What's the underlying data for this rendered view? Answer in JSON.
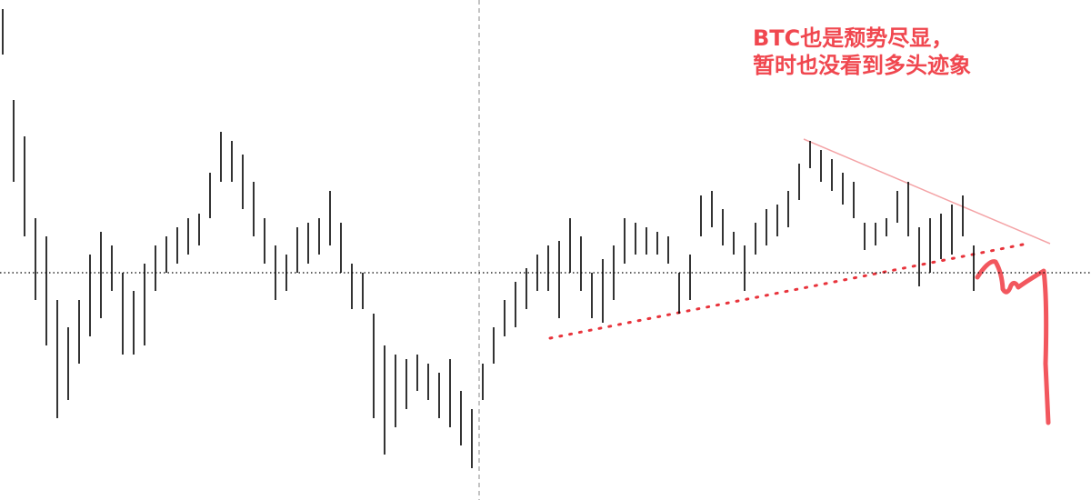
{
  "chart_data": {
    "type": "ohlc",
    "annotations": [
      "BTC也是颓势尽显，",
      "暂时也没看到多头迹象"
    ],
    "color": "#000000",
    "annotation_color": "#f0474f",
    "ylim": [
      0,
      550
    ],
    "price_line": 250,
    "high": [
      540,
      440,
      400,
      310,
      290,
      220,
      190,
      220,
      270,
      295,
      280,
      250,
      230,
      260,
      280,
      290,
      300,
      310,
      315,
      360,
      405,
      395,
      380,
      350,
      310,
      280,
      270,
      300,
      305,
      310,
      340,
      305,
      260,
      250,
      205,
      170,
      160,
      155,
      160,
      150,
      140,
      155,
      120,
      100,
      150,
      190,
      220,
      240,
      255,
      270,
      280,
      285,
      310,
      290,
      250,
      265,
      280,
      310,
      305,
      300,
      295,
      290,
      250,
      270,
      335,
      340,
      320,
      295,
      280,
      305,
      320,
      325,
      340,
      370,
      395,
      385,
      375,
      360,
      350,
      305,
      305,
      310,
      340,
      350,
      300,
      310,
      315,
      325,
      335,
      280
    ],
    "low": [
      490,
      350,
      290,
      220,
      170,
      90,
      110,
      150,
      180,
      200,
      230,
      160,
      160,
      170,
      230,
      250,
      260,
      270,
      280,
      310,
      350,
      350,
      320,
      290,
      260,
      220,
      230,
      250,
      260,
      270,
      280,
      250,
      210,
      210,
      90,
      50,
      80,
      100,
      120,
      110,
      90,
      80,
      60,
      35,
      110,
      150,
      180,
      190,
      210,
      230,
      230,
      200,
      250,
      230,
      200,
      195,
      220,
      260,
      270,
      270,
      270,
      260,
      205,
      220,
      290,
      300,
      280,
      270,
      230,
      270,
      280,
      290,
      300,
      330,
      365,
      350,
      340,
      325,
      310,
      275,
      280,
      290,
      305,
      290,
      235,
      250,
      265,
      270,
      290,
      230
    ]
  }
}
